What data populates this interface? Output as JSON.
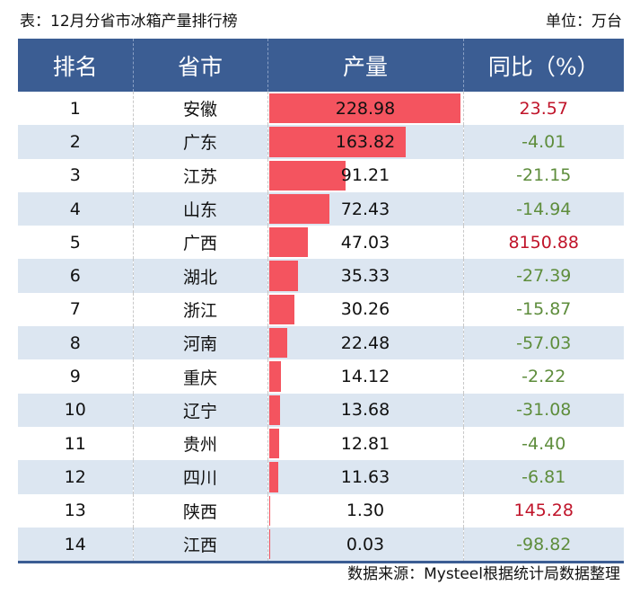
{
  "title": "表：12月分省市冰箱产量排行榜",
  "unit": "单位：万台",
  "headers": [
    "排名",
    "省市",
    "产量",
    "同比（%）"
  ],
  "rows": [
    {
      "rank": "1",
      "province": "安徽",
      "output": 228.98,
      "output_text": "228.98",
      "yoy": "23.57",
      "yoy_sign": "pos"
    },
    {
      "rank": "2",
      "province": "广东",
      "output": 163.82,
      "output_text": "163.82",
      "yoy": "-4.01",
      "yoy_sign": "neg"
    },
    {
      "rank": "3",
      "province": "江苏",
      "output": 91.21,
      "output_text": "91.21",
      "yoy": "-21.15",
      "yoy_sign": "neg"
    },
    {
      "rank": "4",
      "province": "山东",
      "output": 72.43,
      "output_text": "72.43",
      "yoy": "-14.94",
      "yoy_sign": "neg"
    },
    {
      "rank": "5",
      "province": "广西",
      "output": 47.03,
      "output_text": "47.03",
      "yoy": "8150.88",
      "yoy_sign": "pos"
    },
    {
      "rank": "6",
      "province": "湖北",
      "output": 35.33,
      "output_text": "35.33",
      "yoy": "-27.39",
      "yoy_sign": "neg"
    },
    {
      "rank": "7",
      "province": "浙江",
      "output": 30.26,
      "output_text": "30.26",
      "yoy": "-15.87",
      "yoy_sign": "neg"
    },
    {
      "rank": "8",
      "province": "河南",
      "output": 22.48,
      "output_text": "22.48",
      "yoy": "-57.03",
      "yoy_sign": "neg"
    },
    {
      "rank": "9",
      "province": "重庆",
      "output": 14.12,
      "output_text": "14.12",
      "yoy": "-2.22",
      "yoy_sign": "neg"
    },
    {
      "rank": "10",
      "province": "辽宁",
      "output": 13.68,
      "output_text": "13.68",
      "yoy": "-31.08",
      "yoy_sign": "neg"
    },
    {
      "rank": "11",
      "province": "贵州",
      "output": 12.81,
      "output_text": "12.81",
      "yoy": "-4.40",
      "yoy_sign": "neg"
    },
    {
      "rank": "12",
      "province": "四川",
      "output": 11.63,
      "output_text": "11.63",
      "yoy": "-6.81",
      "yoy_sign": "neg"
    },
    {
      "rank": "13",
      "province": "陕西",
      "output": 1.3,
      "output_text": "1.30",
      "yoy": "145.28",
      "yoy_sign": "pos"
    },
    {
      "rank": "14",
      "province": "江西",
      "output": 0.03,
      "output_text": "0.03",
      "yoy": "-98.82",
      "yoy_sign": "neg"
    }
  ],
  "source": "数据来源：Mysteel根据统计局数据整理",
  "colors": {
    "header": "#3b5d93",
    "bar": "#f4545f",
    "positive": "#c0142a",
    "negative": "#5e8d3c",
    "alt_row": "#dce6f1"
  }
}
